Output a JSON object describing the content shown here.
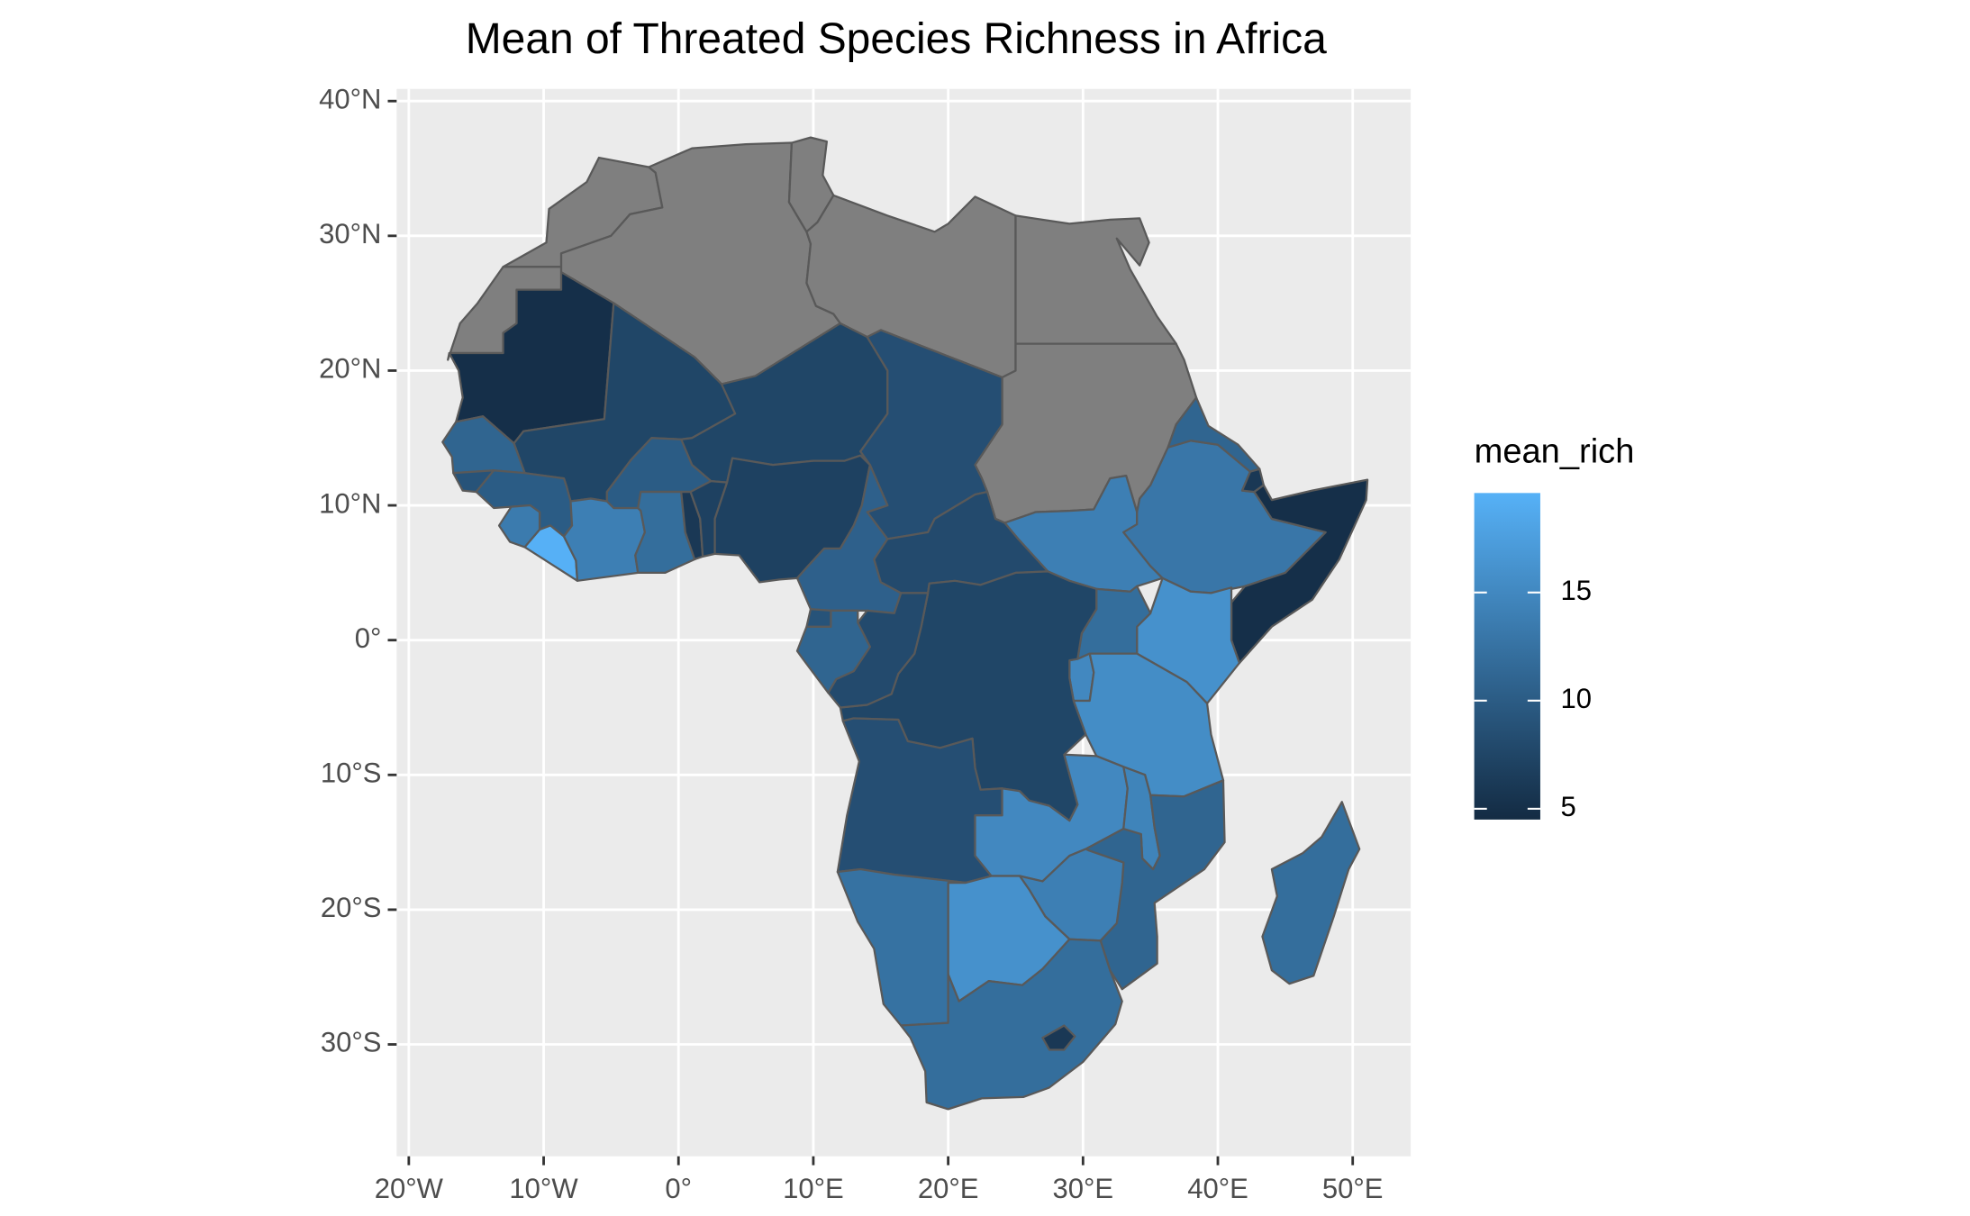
{
  "chart_data": {
    "type": "choropleth",
    "title": "Mean of Threated Species Richness in Africa",
    "legend_title": "mean_rich",
    "xlim": [
      -20.9,
      54.3
    ],
    "ylim": [
      -38.3,
      40.9
    ],
    "xticks": [
      {
        "value": -20,
        "label": "20°W"
      },
      {
        "value": -10,
        "label": "10°W"
      },
      {
        "value": 0,
        "label": "0°"
      },
      {
        "value": 10,
        "label": "10°E"
      },
      {
        "value": 20,
        "label": "20°E"
      },
      {
        "value": 30,
        "label": "30°E"
      },
      {
        "value": 40,
        "label": "40°E"
      },
      {
        "value": 50,
        "label": "50°E"
      }
    ],
    "yticks": [
      {
        "value": -30,
        "label": "30°S"
      },
      {
        "value": -20,
        "label": "20°S"
      },
      {
        "value": -10,
        "label": "10°S"
      },
      {
        "value": 0,
        "label": "0°"
      },
      {
        "value": 10,
        "label": "10°N"
      },
      {
        "value": 20,
        "label": "20°N"
      },
      {
        "value": 30,
        "label": "30°N"
      },
      {
        "value": 40,
        "label": "40°N"
      }
    ],
    "grid": true,
    "colorbar_lim": [
      4.5,
      19.6
    ],
    "colorbar_ticks": [
      5,
      10,
      15
    ],
    "color_low": "#132B43",
    "color_high": "#56B1F7",
    "na_color": "#7f7f7f",
    "values": [
      null,
      null,
      null,
      null,
      null,
      null,
      null,
      5,
      7.5,
      7.5,
      8.5,
      11,
      9,
      10,
      13.5,
      19.5,
      14,
      10,
      12,
      6,
      7,
      7,
      10.5,
      8,
      14,
      13,
      11,
      6,
      5,
      16,
      12,
      15,
      15.5,
      7.5,
      8,
      11,
      9,
      8.5,
      15,
      14.5,
      11,
      14,
      16,
      12.5,
      12,
      6,
      12
    ]
  }
}
